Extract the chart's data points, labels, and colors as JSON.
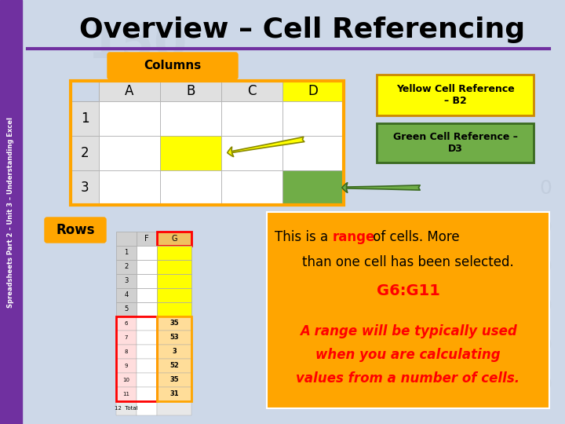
{
  "title": "Overview – Cell Referencing",
  "bg_color": "#cdd8e8",
  "sidebar_color": "#7030a0",
  "sidebar_text": "Spreadsheets Part 2 – Unit 3 – Understanding Excel",
  "title_color": "#000000",
  "purple_line_color": "#7030a0",
  "columns_label": "Columns",
  "rows_label": "Rows",
  "orange_color": "#FFA500",
  "yellow_color": "#FFFF00",
  "green_color": "#70AD47",
  "red_color": "#FF0000",
  "col_headers": [
    "A",
    "B",
    "C",
    "D"
  ],
  "row_headers": [
    "1",
    "2",
    "3"
  ],
  "yellow_ref_text": "Yellow Cell Reference\n– B2",
  "green_ref_text": "Green Cell Reference –\nD3",
  "info_line1a": "This is a ",
  "info_range": "range",
  "info_line1b": " of cells. More",
  "info_line2": "than one cell has been selected.",
  "info_g6g11": "G6:G11",
  "info_line3": "A range will be typically used",
  "info_line4": "when you are calculating",
  "info_line5": "values from a number of cells.",
  "spreadsheet_values": [
    "35",
    "53",
    "3",
    "52",
    "35",
    "31",
    ""
  ],
  "spreadsheet_rows": [
    "6",
    "7",
    "8",
    "9",
    "10",
    "11",
    "12  Total"
  ]
}
